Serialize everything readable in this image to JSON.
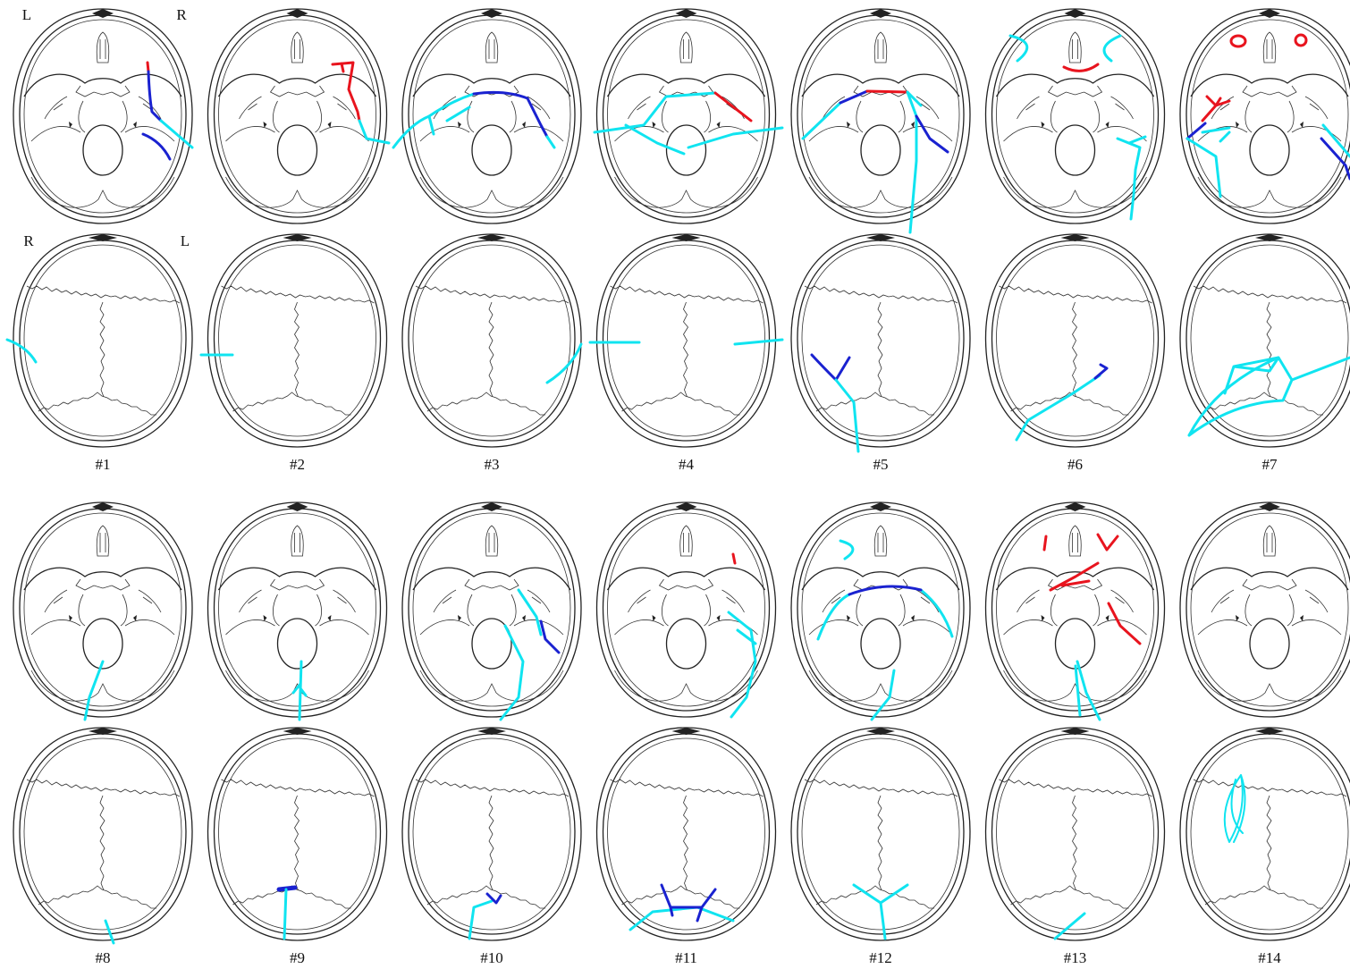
{
  "orientation_labels": {
    "base_left": "L",
    "base_right": "R",
    "vault_left": "R",
    "vault_right": "L"
  },
  "cases": [
    "#1",
    "#2",
    "#3",
    "#4",
    "#5",
    "#6",
    "#7",
    "#8",
    "#9",
    "#10",
    "#11",
    "#12",
    "#13",
    "#14"
  ]
}
